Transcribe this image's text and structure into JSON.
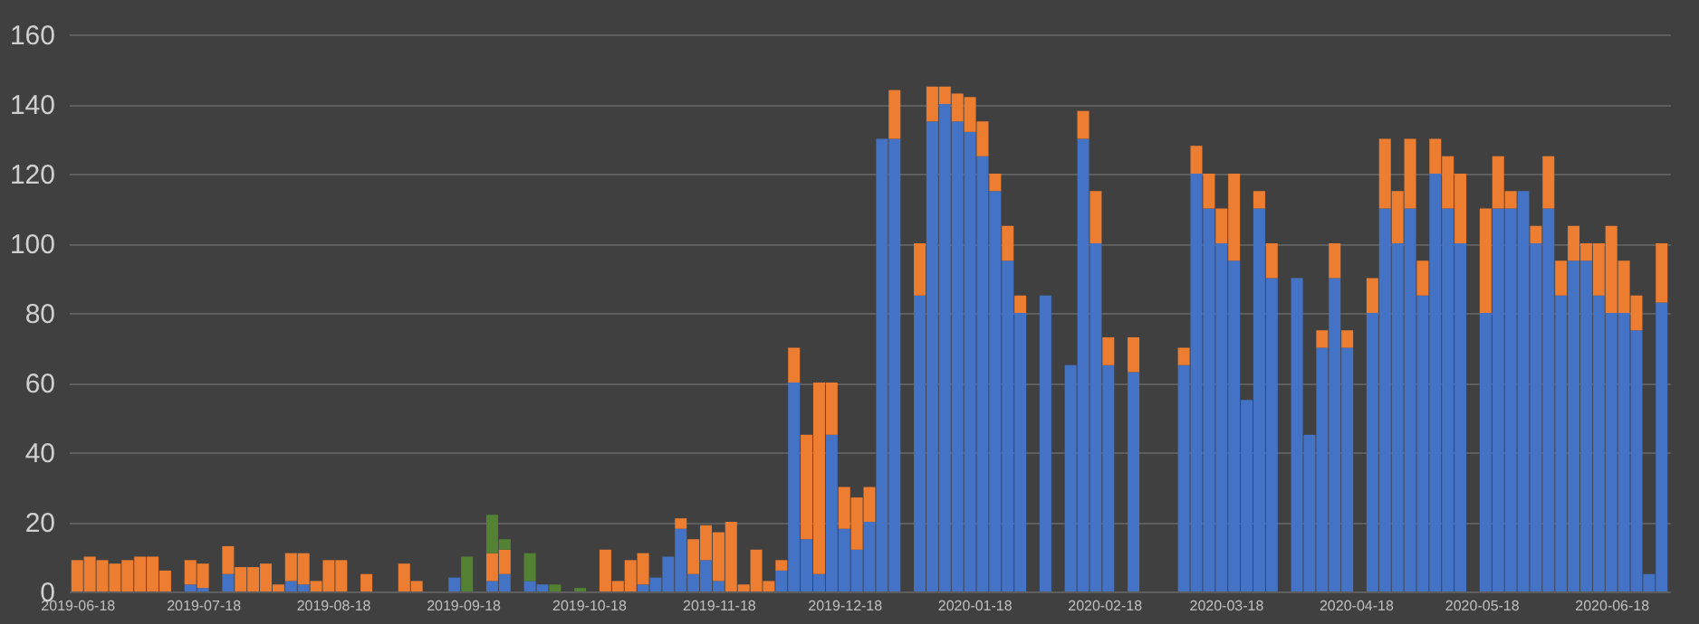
{
  "chart_data": {
    "type": "bar",
    "stacked": true,
    "grid": "y",
    "x": [
      "2019-06-18",
      "2019-06-21",
      "2019-06-24",
      "2019-06-27",
      "2019-06-30",
      "2019-07-03",
      "2019-07-06",
      "2019-07-09",
      "2019-07-12",
      "2019-07-15",
      "2019-07-18",
      "2019-07-21",
      "2019-07-24",
      "2019-07-27",
      "2019-07-30",
      "2019-08-02",
      "2019-08-05",
      "2019-08-08",
      "2019-08-11",
      "2019-08-14",
      "2019-08-17",
      "2019-08-20",
      "2019-08-23",
      "2019-08-26",
      "2019-08-29",
      "2019-09-01",
      "2019-09-04",
      "2019-09-07",
      "2019-09-10",
      "2019-09-13",
      "2019-09-16",
      "2019-09-19",
      "2019-09-22",
      "2019-09-25",
      "2019-09-28",
      "2019-10-01",
      "2019-10-04",
      "2019-10-07",
      "2019-10-10",
      "2019-10-13",
      "2019-10-16",
      "2019-10-19",
      "2019-10-22",
      "2019-10-25",
      "2019-10-28",
      "2019-10-31",
      "2019-11-03",
      "2019-11-06",
      "2019-11-09",
      "2019-11-12",
      "2019-11-15",
      "2019-11-18",
      "2019-11-21",
      "2019-11-24",
      "2019-11-27",
      "2019-11-30",
      "2019-12-03",
      "2019-12-06",
      "2019-12-09",
      "2019-12-12",
      "2019-12-15",
      "2019-12-18",
      "2019-12-21",
      "2019-12-24",
      "2019-12-27",
      "2019-12-30",
      "2020-01-02",
      "2020-01-05",
      "2020-01-08",
      "2020-01-11",
      "2020-01-14",
      "2020-01-17",
      "2020-01-20",
      "2020-01-23",
      "2020-01-26",
      "2020-01-29",
      "2020-02-01",
      "2020-02-04",
      "2020-02-07",
      "2020-02-10",
      "2020-02-13",
      "2020-02-16",
      "2020-02-19",
      "2020-02-22",
      "2020-02-25",
      "2020-02-28",
      "2020-03-02",
      "2020-03-05",
      "2020-03-08",
      "2020-03-11",
      "2020-03-14",
      "2020-03-17",
      "2020-03-20",
      "2020-03-23",
      "2020-03-26",
      "2020-03-29",
      "2020-04-01",
      "2020-04-04",
      "2020-04-07",
      "2020-04-10",
      "2020-04-13",
      "2020-04-16",
      "2020-04-19",
      "2020-04-22",
      "2020-04-25",
      "2020-04-28",
      "2020-05-01",
      "2020-05-04",
      "2020-05-07",
      "2020-05-10",
      "2020-05-13",
      "2020-05-16",
      "2020-05-19",
      "2020-05-22",
      "2020-05-25",
      "2020-05-28",
      "2020-05-31",
      "2020-06-03",
      "2020-06-06",
      "2020-06-09",
      "2020-06-12",
      "2020-06-15",
      "2020-06-18",
      "2020-06-21",
      "2020-06-24",
      "2020-06-27",
      "2020-06-30"
    ],
    "series": [
      {
        "color": "#4472c4",
        "values": [
          0,
          0,
          0,
          0,
          0,
          0,
          0,
          0,
          0,
          2,
          1,
          0,
          5,
          0,
          0,
          0,
          0,
          3,
          2,
          0,
          0,
          0,
          0,
          0,
          0,
          0,
          0,
          0,
          0,
          0,
          4,
          0,
          0,
          3,
          5,
          0,
          3,
          2,
          0,
          0,
          0,
          0,
          0,
          0,
          0,
          2,
          4,
          10,
          18,
          5,
          9,
          3,
          0,
          0,
          0,
          0,
          6,
          60,
          15,
          5,
          45,
          18,
          12,
          20,
          130,
          130,
          0,
          85,
          135,
          140,
          135,
          132,
          125,
          115,
          95,
          80,
          0,
          85,
          0,
          65,
          130,
          100,
          65,
          0,
          63,
          0,
          0,
          0,
          65,
          120,
          110,
          100,
          95,
          55,
          110,
          90,
          0,
          90,
          45,
          70,
          90,
          70,
          0,
          80,
          110,
          100,
          110,
          85,
          120,
          110,
          100,
          0,
          80,
          110,
          110,
          115,
          100,
          110,
          85,
          95,
          95,
          85,
          80,
          80,
          75,
          5,
          83
        ]
      },
      {
        "color": "#ed7d31",
        "values": [
          9,
          10,
          9,
          8,
          9,
          10,
          10,
          6,
          0,
          7,
          7,
          0,
          8,
          7,
          7,
          8,
          2,
          8,
          9,
          3,
          9,
          9,
          0,
          5,
          0,
          0,
          8,
          3,
          0,
          0,
          0,
          0,
          0,
          8,
          7,
          0,
          0,
          0,
          0,
          0,
          0,
          0,
          12,
          3,
          9,
          9,
          0,
          0,
          3,
          10,
          10,
          14,
          20,
          2,
          12,
          3,
          3,
          10,
          30,
          55,
          15,
          12,
          15,
          10,
          0,
          14,
          0,
          15,
          10,
          5,
          8,
          10,
          10,
          5,
          10,
          5,
          0,
          0,
          0,
          0,
          8,
          15,
          8,
          0,
          10,
          0,
          0,
          0,
          5,
          8,
          10,
          10,
          25,
          0,
          5,
          10,
          0,
          0,
          0,
          5,
          10,
          5,
          0,
          10,
          20,
          15,
          20,
          10,
          10,
          15,
          20,
          0,
          30,
          15,
          5,
          0,
          5,
          15,
          10,
          10,
          5,
          15,
          25,
          15,
          10,
          0,
          17
        ]
      },
      {
        "color": "#548235",
        "values": [
          0,
          0,
          0,
          0,
          0,
          0,
          0,
          0,
          0,
          0,
          0,
          0,
          0,
          0,
          0,
          0,
          0,
          0,
          0,
          0,
          0,
          0,
          0,
          0,
          0,
          0,
          0,
          0,
          0,
          0,
          0,
          10,
          0,
          11,
          3,
          0,
          8,
          0,
          2,
          0,
          1,
          0,
          0,
          0,
          0,
          0,
          0,
          0,
          0,
          0,
          0,
          0,
          0,
          0,
          0,
          0,
          0,
          0,
          0,
          0,
          0,
          0,
          0,
          0,
          0,
          0,
          0,
          0,
          0,
          0,
          0,
          0,
          0,
          0,
          0,
          0,
          0,
          0,
          0,
          0,
          0,
          0,
          0,
          0,
          0,
          0,
          0,
          0,
          0,
          0,
          0,
          0,
          0,
          0,
          0,
          0,
          0,
          0,
          0,
          0,
          0,
          0,
          0,
          0,
          0,
          0,
          0,
          0,
          0,
          0,
          0,
          0,
          0,
          0,
          0,
          0,
          0,
          0,
          0,
          0,
          0,
          0,
          0,
          0,
          0,
          0,
          0
        ]
      }
    ],
    "xlim": [
      "2019-06-16",
      "2020-07-02"
    ],
    "xticks": [
      "2019-06-18",
      "2019-07-18",
      "2019-08-18",
      "2019-09-18",
      "2019-10-18",
      "2019-11-18",
      "2019-12-18",
      "2020-01-18",
      "2020-02-18",
      "2020-03-18",
      "2020-04-18",
      "2020-05-18",
      "2020-06-18"
    ],
    "ylim": [
      0,
      160
    ],
    "yticks": [
      0,
      20,
      40,
      60,
      80,
      100,
      120,
      140,
      160
    ]
  }
}
